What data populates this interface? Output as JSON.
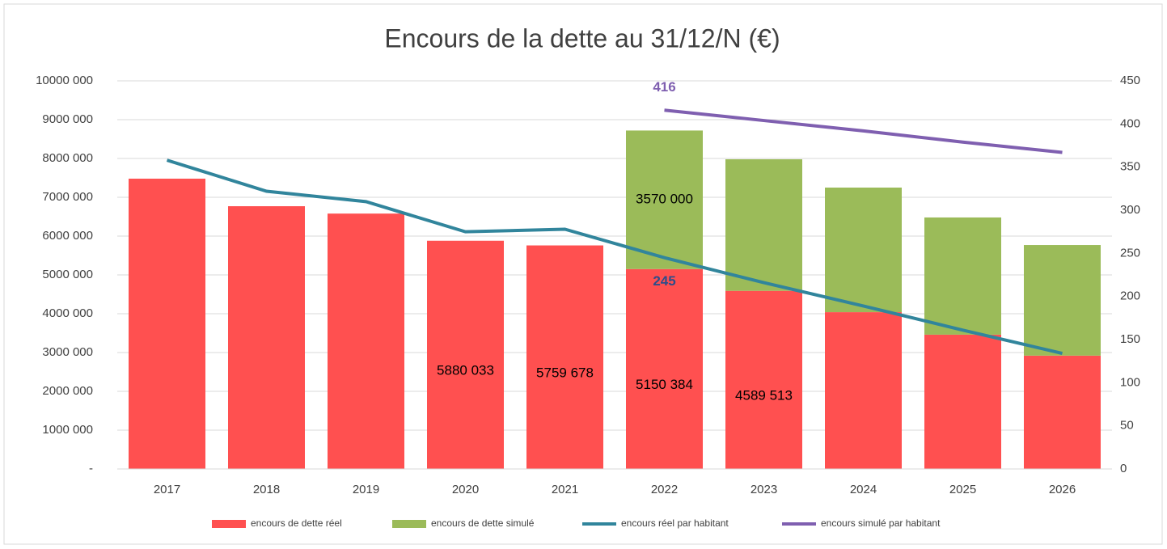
{
  "chart_data": {
    "type": "bar-line",
    "title": "Encours de la dette au 31/12/N (€)",
    "categories": [
      "2017",
      "2018",
      "2019",
      "2020",
      "2021",
      "2022",
      "2023",
      "2024",
      "2025",
      "2026"
    ],
    "series": [
      {
        "name": "encours de dette réel",
        "color": "#ff5050",
        "kind": "bar",
        "values": [
          7480000,
          6770000,
          6580000,
          5880033,
          5759678,
          5150384,
          4589513,
          4040000,
          3460000,
          2920000
        ],
        "value_labels": [
          null,
          null,
          null,
          "5880 033",
          "5759 678",
          "5150 384",
          "4589 513",
          null,
          null,
          null
        ]
      },
      {
        "name": "encours de dette simulé",
        "color": "#9bbb59",
        "kind": "bar",
        "values": [
          null,
          null,
          null,
          null,
          null,
          3570000,
          3390000,
          3210000,
          3020000,
          2850000
        ],
        "value_labels": [
          null,
          null,
          null,
          null,
          null,
          "3570 000",
          null,
          null,
          null,
          null
        ]
      },
      {
        "name": "encours réel par habitant",
        "color": "#31859c",
        "kind": "line",
        "axis": "y2",
        "values": [
          358,
          322,
          310,
          275,
          278,
          245,
          216,
          189,
          161,
          134
        ],
        "value_labels": [
          null,
          null,
          null,
          null,
          null,
          "245",
          null,
          null,
          null,
          null
        ]
      },
      {
        "name": "encours simulé par habitant",
        "color": "#7f5fb0",
        "kind": "line",
        "axis": "y2",
        "values": [
          null,
          null,
          null,
          null,
          null,
          416,
          404,
          392,
          379,
          367
        ],
        "value_labels": [
          null,
          null,
          null,
          null,
          null,
          "416",
          null,
          null,
          null,
          null
        ]
      }
    ],
    "ylim": [
      0,
      10000000
    ],
    "yticks": [
      {
        "value": 0,
        "label": "-"
      },
      {
        "value": 1000000,
        "label": "1000 000"
      },
      {
        "value": 2000000,
        "label": "2000 000"
      },
      {
        "value": 3000000,
        "label": "3000 000"
      },
      {
        "value": 4000000,
        "label": "4000 000"
      },
      {
        "value": 5000000,
        "label": "5000 000"
      },
      {
        "value": 6000000,
        "label": "6000 000"
      },
      {
        "value": 7000000,
        "label": "7000 000"
      },
      {
        "value": 8000000,
        "label": "8000 000"
      },
      {
        "value": 9000000,
        "label": "9000 000"
      },
      {
        "value": 10000000,
        "label": "10000 000"
      }
    ],
    "y2lim": [
      0,
      450
    ],
    "y2ticks": [
      0,
      50,
      100,
      150,
      200,
      250,
      300,
      350,
      400,
      450
    ],
    "grid": true,
    "legend": "bottom"
  }
}
